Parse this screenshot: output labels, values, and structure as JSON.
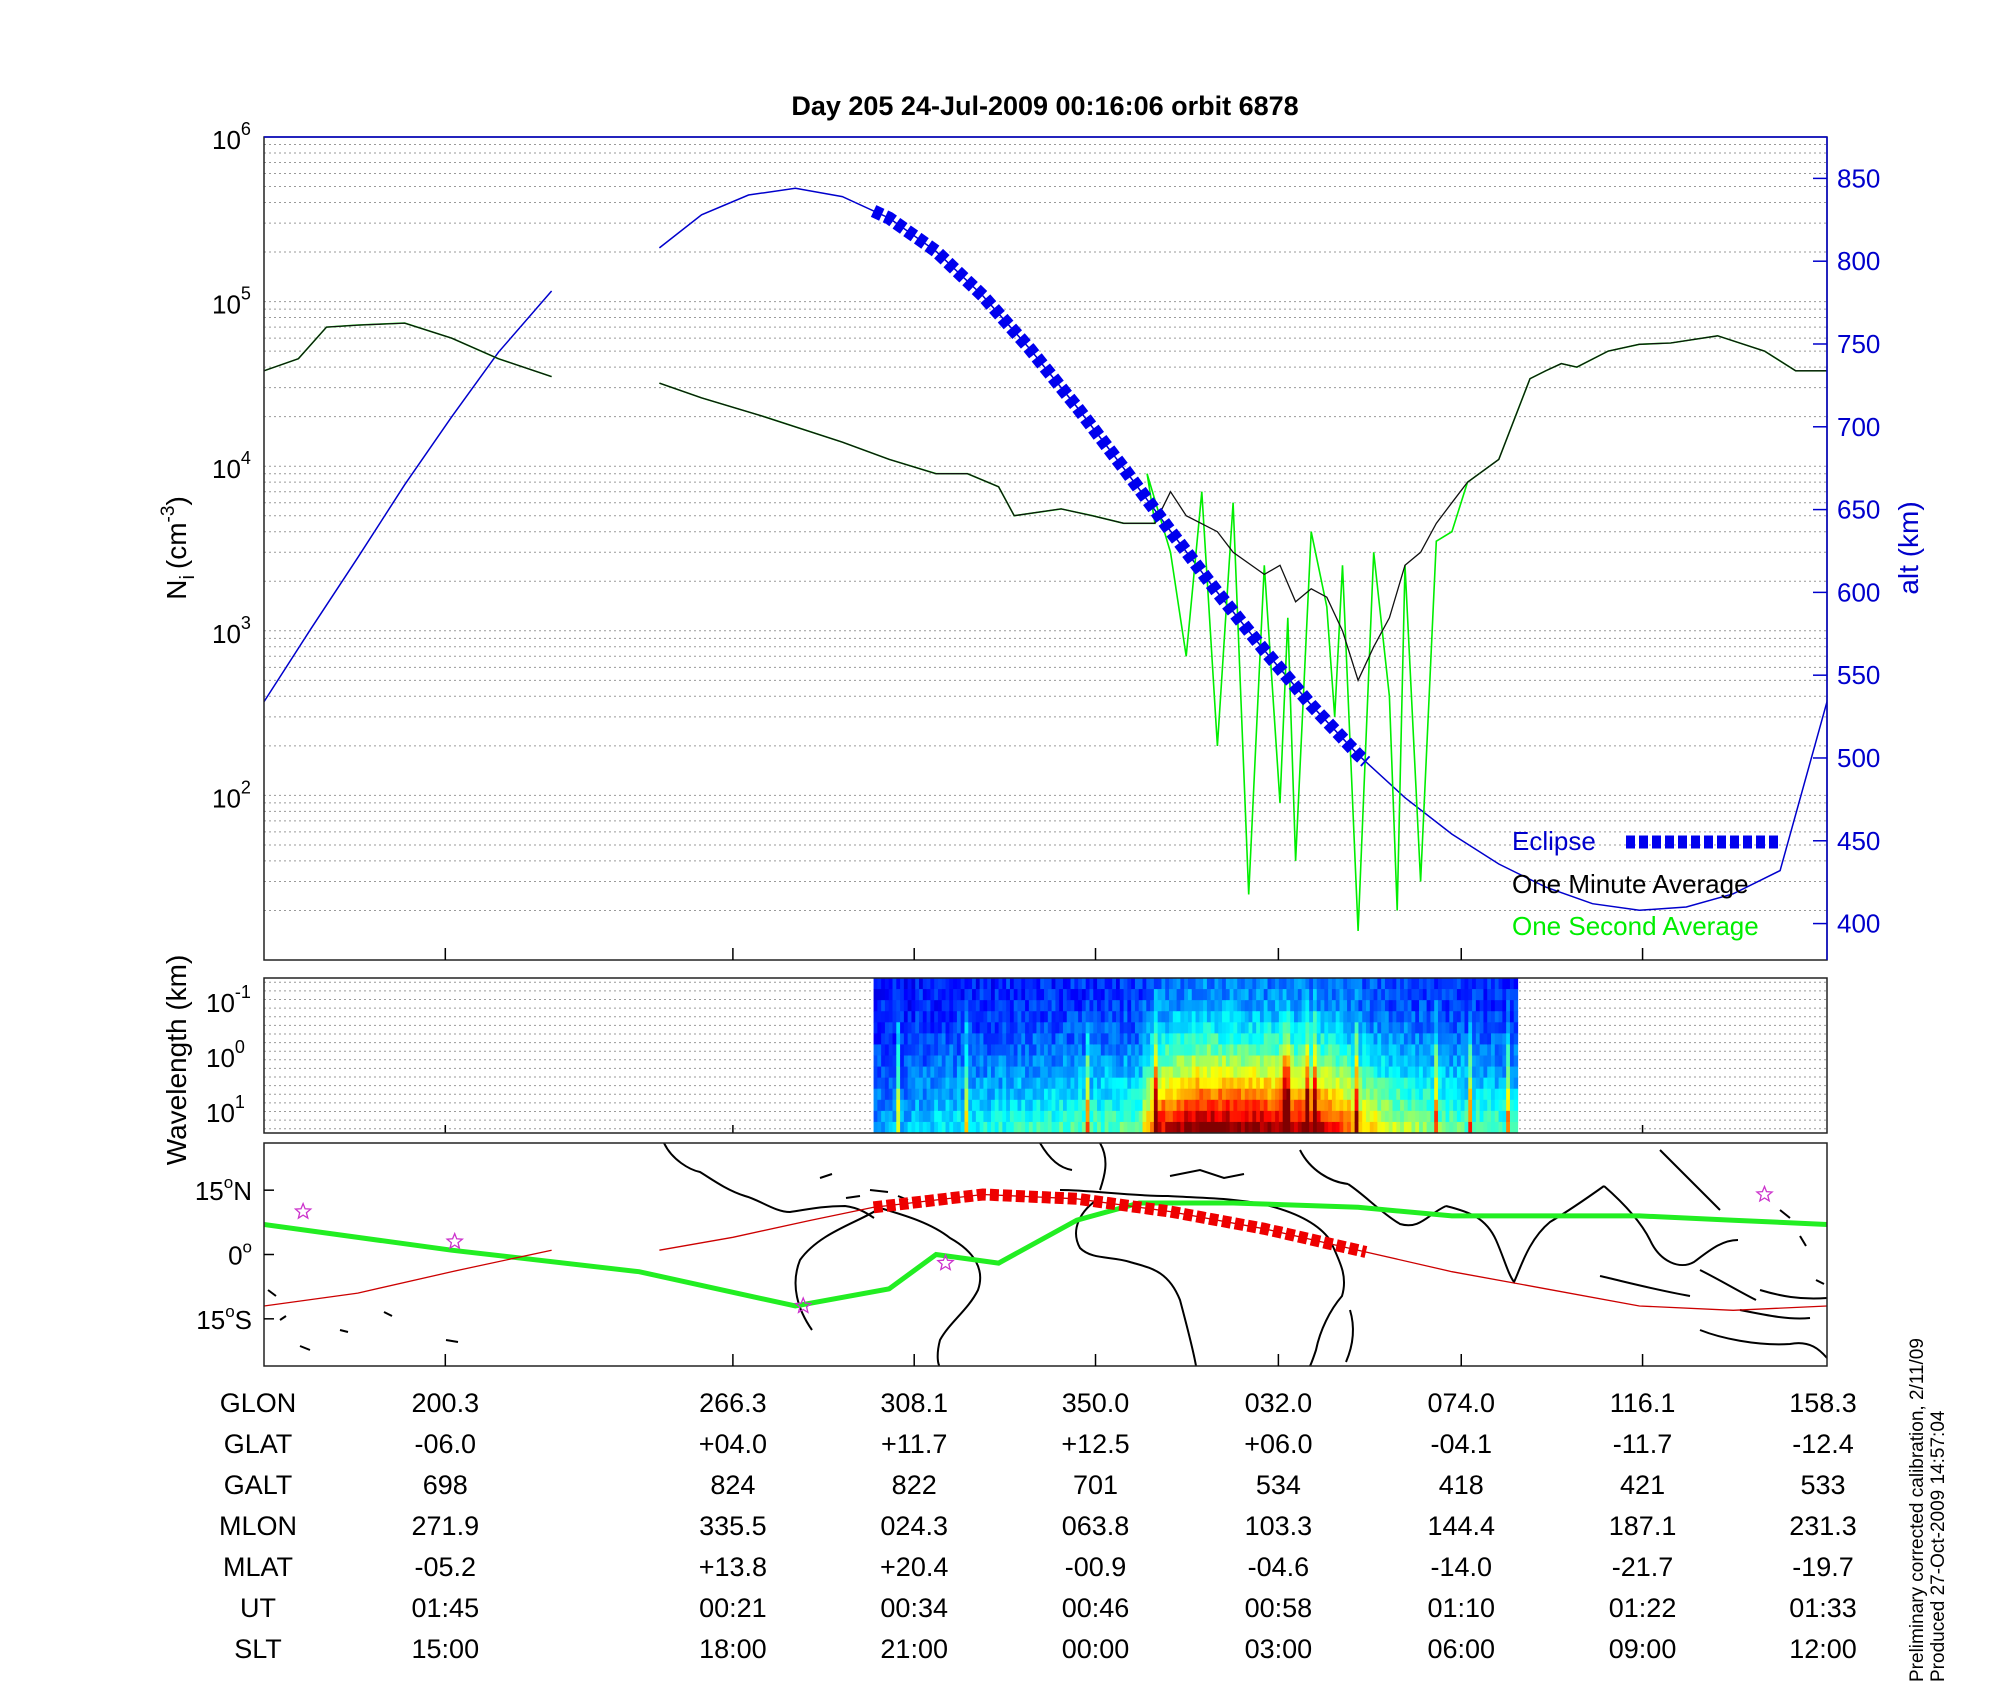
{
  "colors": {
    "density_1s": "#00ee00",
    "density_1min": "#111111",
    "altitude": "#0000cc",
    "eclipse": "#0000ee",
    "track_green": "#22ee22",
    "track_red": "#cc0000",
    "track_eclipse_red": "#ee0000",
    "stars": "#cc33cc"
  },
  "chart_data": [
    {
      "type": "line",
      "panel": "density",
      "title": "Day 205  24-Jul-2009 00:16:06   orbit 6878",
      "ylabel": "N_i (cm^-3)",
      "ylabel_main": "N",
      "ylabel_sub": "i",
      "ylabel_unit": "(cm",
      "ylabel_exp": "-3",
      "ylabel_close": ")",
      "yscale": "log",
      "ylim": [
        10,
        1000000
      ],
      "y_ticks": [
        {
          "base": "10",
          "exp": "6"
        },
        {
          "base": "10",
          "exp": "5"
        },
        {
          "base": "10",
          "exp": "4"
        },
        {
          "base": "10",
          "exp": "3"
        },
        {
          "base": "10",
          "exp": "2"
        }
      ],
      "y2label": "alt (km)",
      "y2lim": [
        378,
        875
      ],
      "y2_ticks": [
        "850",
        "800",
        "750",
        "700",
        "650",
        "600",
        "550",
        "500",
        "450",
        "400"
      ],
      "grid": true,
      "x_key": "orbit_fraction",
      "legend": [
        "Eclipse",
        "One Minute Average",
        "One Second Average"
      ],
      "legend_position": "bottom-right",
      "series": [
        {
          "name": "One Second Average",
          "x": [
            0.0,
            0.022,
            0.04,
            0.06,
            0.09,
            0.12,
            0.15,
            0.184,
            null,
            0.253,
            0.28,
            0.32,
            0.37,
            0.4,
            0.43,
            0.45,
            0.47,
            0.48,
            0.51,
            0.53,
            0.55,
            0.57,
            0.565,
            0.58,
            0.59,
            0.6,
            0.61,
            0.62,
            0.63,
            0.64,
            0.65,
            0.655,
            0.66,
            0.67,
            0.68,
            0.685,
            0.69,
            0.7,
            0.71,
            0.72,
            0.725,
            0.73,
            0.74,
            0.75,
            0.76,
            0.77,
            0.79,
            0.81,
            0.82,
            0.83,
            0.84,
            0.86,
            0.88,
            0.9,
            0.93,
            0.96,
            0.98,
            1.0
          ],
          "y": [
            38000,
            45000,
            70000,
            72000,
            74000,
            60000,
            45000,
            35000,
            null,
            32000,
            26000,
            20000,
            14000,
            11000,
            9000,
            9000,
            7500,
            5000,
            5500,
            5000,
            4500,
            4500,
            9000,
            3000,
            700,
            7000,
            200,
            6000,
            25,
            2500,
            90,
            1200,
            40,
            4000,
            1400,
            300,
            2500,
            15,
            3000,
            400,
            20,
            2500,
            30,
            3500,
            4000,
            8000,
            11000,
            34000,
            38000,
            42000,
            40000,
            50000,
            55000,
            56000,
            62000,
            50000,
            38000,
            38000
          ]
        },
        {
          "name": "One Minute Average",
          "x": [
            0.0,
            0.022,
            0.04,
            0.06,
            0.09,
            0.12,
            0.15,
            0.184,
            null,
            0.253,
            0.28,
            0.32,
            0.37,
            0.4,
            0.43,
            0.45,
            0.47,
            0.48,
            0.51,
            0.53,
            0.55,
            0.57,
            0.58,
            0.59,
            0.61,
            0.62,
            0.64,
            0.65,
            0.66,
            0.67,
            0.68,
            0.69,
            0.7,
            0.71,
            0.72,
            0.73,
            0.74,
            0.75,
            0.76,
            0.77,
            0.79,
            0.81,
            0.82,
            0.83,
            0.84,
            0.86,
            0.88,
            0.9,
            0.93,
            0.96,
            0.98,
            1.0
          ],
          "y": [
            38000,
            45000,
            70000,
            72000,
            74000,
            60000,
            45000,
            35000,
            null,
            32000,
            26000,
            20000,
            14000,
            11000,
            9000,
            9000,
            7500,
            5000,
            5500,
            5000,
            4500,
            4500,
            7000,
            5000,
            4000,
            3000,
            2200,
            2500,
            1500,
            1800,
            1600,
            1000,
            500,
            800,
            1200,
            2500,
            3000,
            4500,
            6000,
            8000,
            11000,
            34000,
            38000,
            42000,
            40000,
            50000,
            55000,
            56000,
            62000,
            50000,
            38000,
            38000
          ]
        },
        {
          "name": "altitude_km",
          "axis": "y2",
          "x": [
            0.0,
            0.03,
            0.06,
            0.09,
            0.12,
            0.15,
            0.184,
            null,
            0.253,
            0.28,
            0.31,
            0.34,
            0.37,
            0.4,
            0.43,
            0.46,
            0.49,
            0.52,
            0.55,
            0.58,
            0.61,
            0.64,
            0.67,
            0.7,
            0.73,
            0.76,
            0.79,
            0.82,
            0.85,
            0.88,
            0.91,
            0.94,
            0.97,
            1.0
          ],
          "y": [
            534,
            578,
            621,
            665,
            706,
            745,
            782,
            null,
            808,
            828,
            840,
            844,
            839,
            826,
            806,
            779,
            747,
            712,
            675,
            637,
            600,
            565,
            532,
            502,
            476,
            454,
            436,
            422,
            412,
            408,
            410,
            418,
            432,
            534
          ]
        }
      ],
      "eclipse_span": [
        0.39,
        0.705
      ],
      "eclipse_legend_label": "Eclipse",
      "annotations": []
    },
    {
      "type": "heatmap",
      "panel": "spectrogram",
      "ylabel": "Wavelength (km)",
      "yscale": "log",
      "y_ticks": [
        {
          "base": "10",
          "exp": "-1"
        },
        {
          "base": "10",
          "exp": "0"
        },
        {
          "base": "10",
          "exp": "1"
        }
      ],
      "x_extent": [
        0.39,
        0.802
      ],
      "intensity_profile": [
        {
          "x": 0.39,
          "level": 0.15
        },
        {
          "x": 0.44,
          "level": 0.25
        },
        {
          "x": 0.5,
          "level": 0.3
        },
        {
          "x": 0.56,
          "level": 0.35
        },
        {
          "x": 0.57,
          "level": 0.75
        },
        {
          "x": 0.6,
          "level": 0.9
        },
        {
          "x": 0.65,
          "level": 0.85
        },
        {
          "x": 0.68,
          "level": 0.8
        },
        {
          "x": 0.7,
          "level": 0.6
        },
        {
          "x": 0.72,
          "level": 0.45
        },
        {
          "x": 0.76,
          "level": 0.35
        },
        {
          "x": 0.8,
          "level": 0.3
        }
      ],
      "colormap": "jet"
    },
    {
      "type": "line",
      "panel": "map",
      "y_ticks": [
        {
          "value": "15",
          "unit": "o",
          "hemi": "N"
        },
        {
          "value": "0",
          "unit": "o",
          "hemi": ""
        },
        {
          "value": "15",
          "unit": "o",
          "hemi": "S"
        }
      ],
      "ylim": [
        -26,
        26
      ],
      "series": [
        {
          "name": "magnetic_track",
          "x": [
            0.0,
            0.12,
            0.24,
            0.34,
            0.4,
            0.43,
            0.47,
            0.52,
            0.56,
            0.62,
            0.7,
            0.76,
            0.82,
            0.88,
            0.94,
            1.0
          ],
          "y": [
            7,
            1,
            -4,
            -12,
            -8,
            0,
            -2,
            8,
            12,
            12,
            11,
            9,
            9,
            9,
            8,
            7
          ]
        },
        {
          "name": "orbit_track",
          "x": [
            0.0,
            0.06,
            0.12,
            0.184,
            null,
            0.253,
            0.3,
            0.35,
            0.39,
            0.46,
            0.52,
            0.58,
            0.64,
            0.7,
            0.76,
            0.82,
            0.88,
            0.94,
            1.0
          ],
          "y": [
            -12,
            -9,
            -4,
            1,
            null,
            1,
            4,
            8,
            11,
            14,
            13,
            10,
            6,
            1,
            -4,
            -8,
            -12,
            -13,
            -12
          ]
        }
      ],
      "eclipse_track_span": [
        0.39,
        0.705
      ],
      "star_markers": [
        {
          "x": 0.025,
          "y": 10
        },
        {
          "x": 0.122,
          "y": 3
        },
        {
          "x": 0.345,
          "y": -12
        },
        {
          "x": 0.436,
          "y": -2
        },
        {
          "x": 0.96,
          "y": 14
        }
      ]
    }
  ],
  "table": {
    "x_key": "orbit_fraction",
    "columns_x": [
      0.116,
      0.3,
      0.416,
      0.532,
      0.649,
      0.766,
      0.882,
      1.0
    ],
    "rows": [
      {
        "label": "GLON",
        "values": [
          "200.3",
          "266.3",
          "308.1",
          "350.0",
          "032.0",
          "074.0",
          "116.1",
          "158.3"
        ]
      },
      {
        "label": "GLAT",
        "values": [
          "-06.0",
          "+04.0",
          "+11.7",
          "+12.5",
          "+06.0",
          "-04.1",
          "-11.7",
          "-12.4"
        ]
      },
      {
        "label": "GALT",
        "values": [
          "698",
          "824",
          "822",
          "701",
          "534",
          "418",
          "421",
          "533"
        ]
      },
      {
        "label": "MLON",
        "values": [
          "271.9",
          "335.5",
          "024.3",
          "063.8",
          "103.3",
          "144.4",
          "187.1",
          "231.3"
        ]
      },
      {
        "label": "MLAT",
        "values": [
          "-05.2",
          "+13.8",
          "+20.4",
          "-00.9",
          "-04.6",
          "-14.0",
          "-21.7",
          "-19.7"
        ]
      },
      {
        "label": "UT",
        "values": [
          "01:45",
          "00:21",
          "00:34",
          "00:46",
          "00:58",
          "01:10",
          "01:22",
          "01:33"
        ]
      },
      {
        "label": "SLT",
        "values": [
          "15:00",
          "18:00",
          "21:00",
          "00:00",
          "03:00",
          "06:00",
          "09:00",
          "12:00"
        ]
      }
    ]
  },
  "footer": {
    "line1": "Preliminary corrected calibration, 2/11/09",
    "line2": "Produced 27-Oct-2009 14:57:04"
  }
}
